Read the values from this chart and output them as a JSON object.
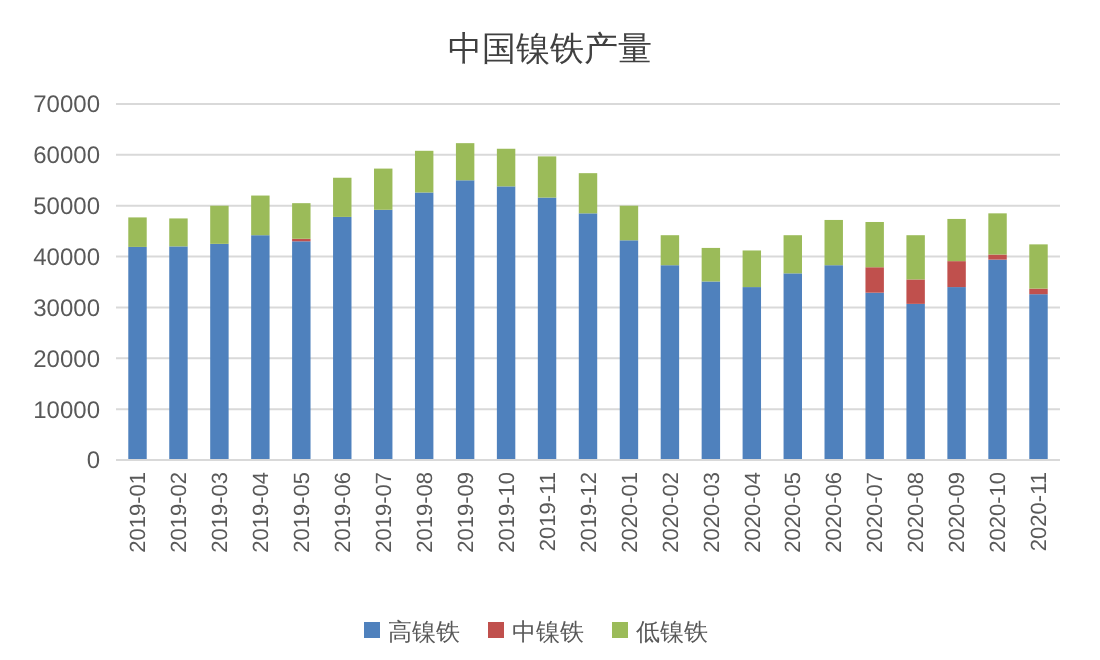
{
  "chart_data": {
    "type": "bar",
    "title": "中国镍铁产量",
    "stacked": true,
    "categories": [
      "2019-01",
      "2019-02",
      "2019-03",
      "2019-04",
      "2019-05",
      "2019-06",
      "2019-07",
      "2019-08",
      "2019-09",
      "2019-10",
      "2019-11",
      "2019-12",
      "2020-01",
      "2020-02",
      "2020-03",
      "2020-04",
      "2020-05",
      "2020-06",
      "2020-07",
      "2020-08",
      "2020-09",
      "2020-10",
      "2020-11"
    ],
    "series": [
      {
        "name": "高镍铁",
        "color": "#4f81bd",
        "values": [
          41900,
          42000,
          42500,
          44200,
          43000,
          47800,
          49200,
          52600,
          55000,
          53800,
          51600,
          48500,
          43200,
          38300,
          35100,
          34000,
          36700,
          38300,
          32900,
          30700,
          34000,
          39400,
          32600
        ]
      },
      {
        "name": "中镍铁",
        "color": "#c0504d",
        "values": [
          0,
          0,
          0,
          0,
          500,
          0,
          0,
          0,
          0,
          0,
          0,
          0,
          0,
          0,
          0,
          0,
          0,
          0,
          5000,
          4800,
          5100,
          1000,
          1100
        ]
      },
      {
        "name": "低镍铁",
        "color": "#9bbb59",
        "values": [
          5800,
          5500,
          7500,
          7800,
          7000,
          7700,
          8100,
          8200,
          7300,
          7400,
          8100,
          7900,
          6800,
          5900,
          6600,
          7200,
          7500,
          8900,
          8900,
          8700,
          8300,
          8100,
          8700
        ]
      }
    ],
    "ylim": [
      0,
      70000
    ],
    "yticks": [
      0,
      10000,
      20000,
      30000,
      40000,
      50000,
      60000,
      70000
    ],
    "grid": "y",
    "legend": "bottom"
  }
}
